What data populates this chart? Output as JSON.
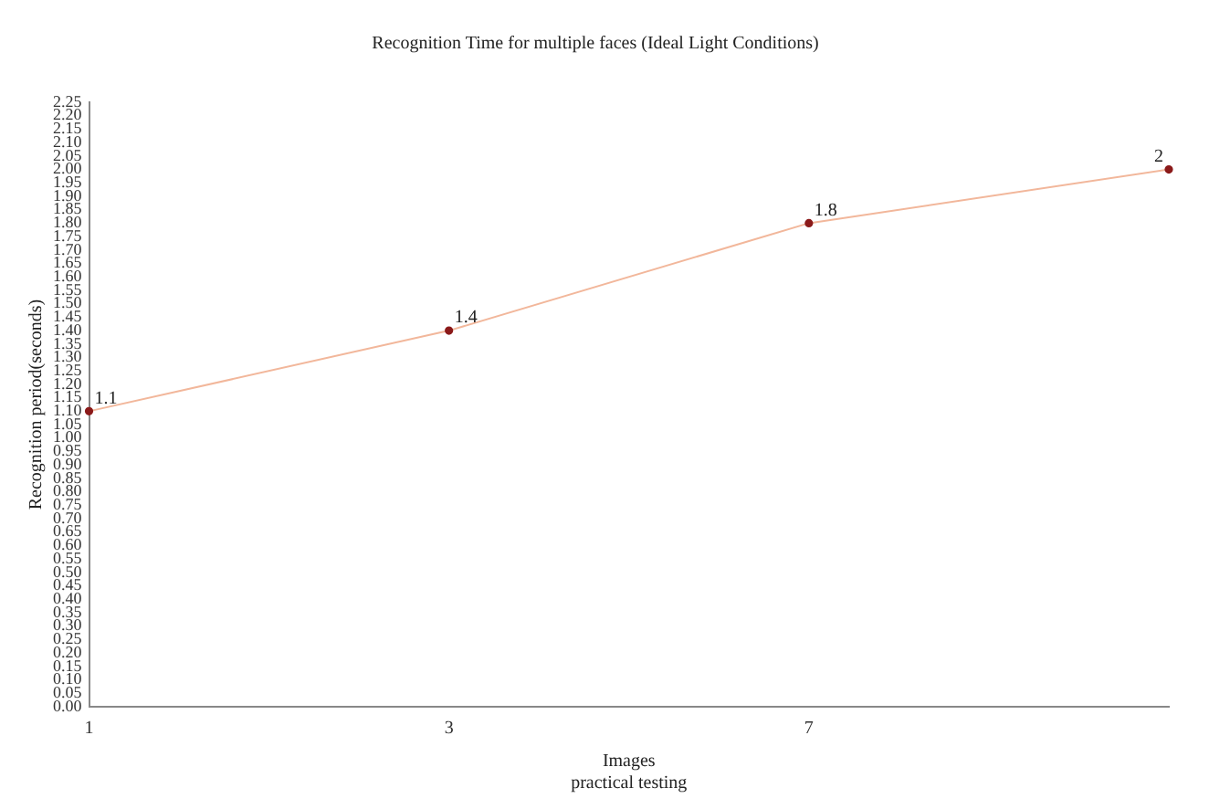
{
  "chart_data": {
    "type": "line",
    "title": "Recognition Time for multiple faces (Ideal Light Conditions)",
    "xlabel": "Images\npractical testing",
    "ylabel": "Recognition period(seconds)",
    "categories": [
      "1",
      "3",
      "7",
      null
    ],
    "series": [
      {
        "color": "#f2b79b",
        "values": [
          1.1,
          1.4,
          1.8,
          2.0
        ]
      }
    ],
    "marker": "circle",
    "data_labels": true,
    "grid": false,
    "legend": false,
    "ylim": [
      0,
      2.25
    ],
    "yticks": [
      {
        "value": 0,
        "label": "0.00"
      },
      {
        "value": 0.05,
        "label": "0.05"
      },
      {
        "value": 0.1,
        "label": "0.10"
      },
      {
        "value": 0.15,
        "label": "0.15"
      },
      {
        "value": 0.2,
        "label": "0.20"
      },
      {
        "value": 0.25,
        "label": "0.25"
      },
      {
        "value": 0.3,
        "label": "0.30"
      },
      {
        "value": 0.35,
        "label": "0.35"
      },
      {
        "value": 0.4,
        "label": "0.40"
      },
      {
        "value": 0.45,
        "label": "0.45"
      },
      {
        "value": 0.5,
        "label": "0.50"
      },
      {
        "value": 0.55,
        "label": "0.55"
      },
      {
        "value": 0.6,
        "label": "0.60"
      },
      {
        "value": 0.65,
        "label": "0.65"
      },
      {
        "value": 0.7,
        "label": "0.70"
      },
      {
        "value": 0.75,
        "label": "0.75"
      },
      {
        "value": 0.8,
        "label": "0.80"
      },
      {
        "value": 0.85,
        "label": "0.85"
      },
      {
        "value": 0.9,
        "label": "0.90"
      },
      {
        "value": 0.95,
        "label": "0.95"
      },
      {
        "value": 1,
        "label": "1.00"
      },
      {
        "value": 1.05,
        "label": "1.05"
      },
      {
        "value": 1.1,
        "label": "1.10"
      },
      {
        "value": 1.15,
        "label": "1.15"
      },
      {
        "value": 1.2,
        "label": "1.20"
      },
      {
        "value": 1.25,
        "label": "1.25"
      },
      {
        "value": 1.3,
        "label": "1.30"
      },
      {
        "value": 1.35,
        "label": "1.35"
      },
      {
        "value": 1.4,
        "label": "1.40"
      },
      {
        "value": 1.45,
        "label": "1.45"
      },
      {
        "value": 1.5,
        "label": "1.50"
      },
      {
        "value": 1.55,
        "label": "1.55"
      },
      {
        "value": 1.6,
        "label": "1.60"
      },
      {
        "value": 1.65,
        "label": "1.65"
      },
      {
        "value": 1.7,
        "label": "1.70"
      },
      {
        "value": 1.75,
        "label": "1.75"
      },
      {
        "value": 1.8,
        "label": "1.80"
      },
      {
        "value": 1.85,
        "label": "1.85"
      },
      {
        "value": 1.9,
        "label": "1.90"
      },
      {
        "value": 1.95,
        "label": "1.95"
      },
      {
        "value": 2,
        "label": "2.00"
      },
      {
        "value": 2.05,
        "label": "2.05"
      },
      {
        "value": 2.1,
        "label": "2.10"
      },
      {
        "value": 2.15,
        "label": "2.15"
      },
      {
        "value": 2.2,
        "label": "2.20"
      },
      {
        "value": 2.25,
        "label": "2.25"
      }
    ]
  }
}
